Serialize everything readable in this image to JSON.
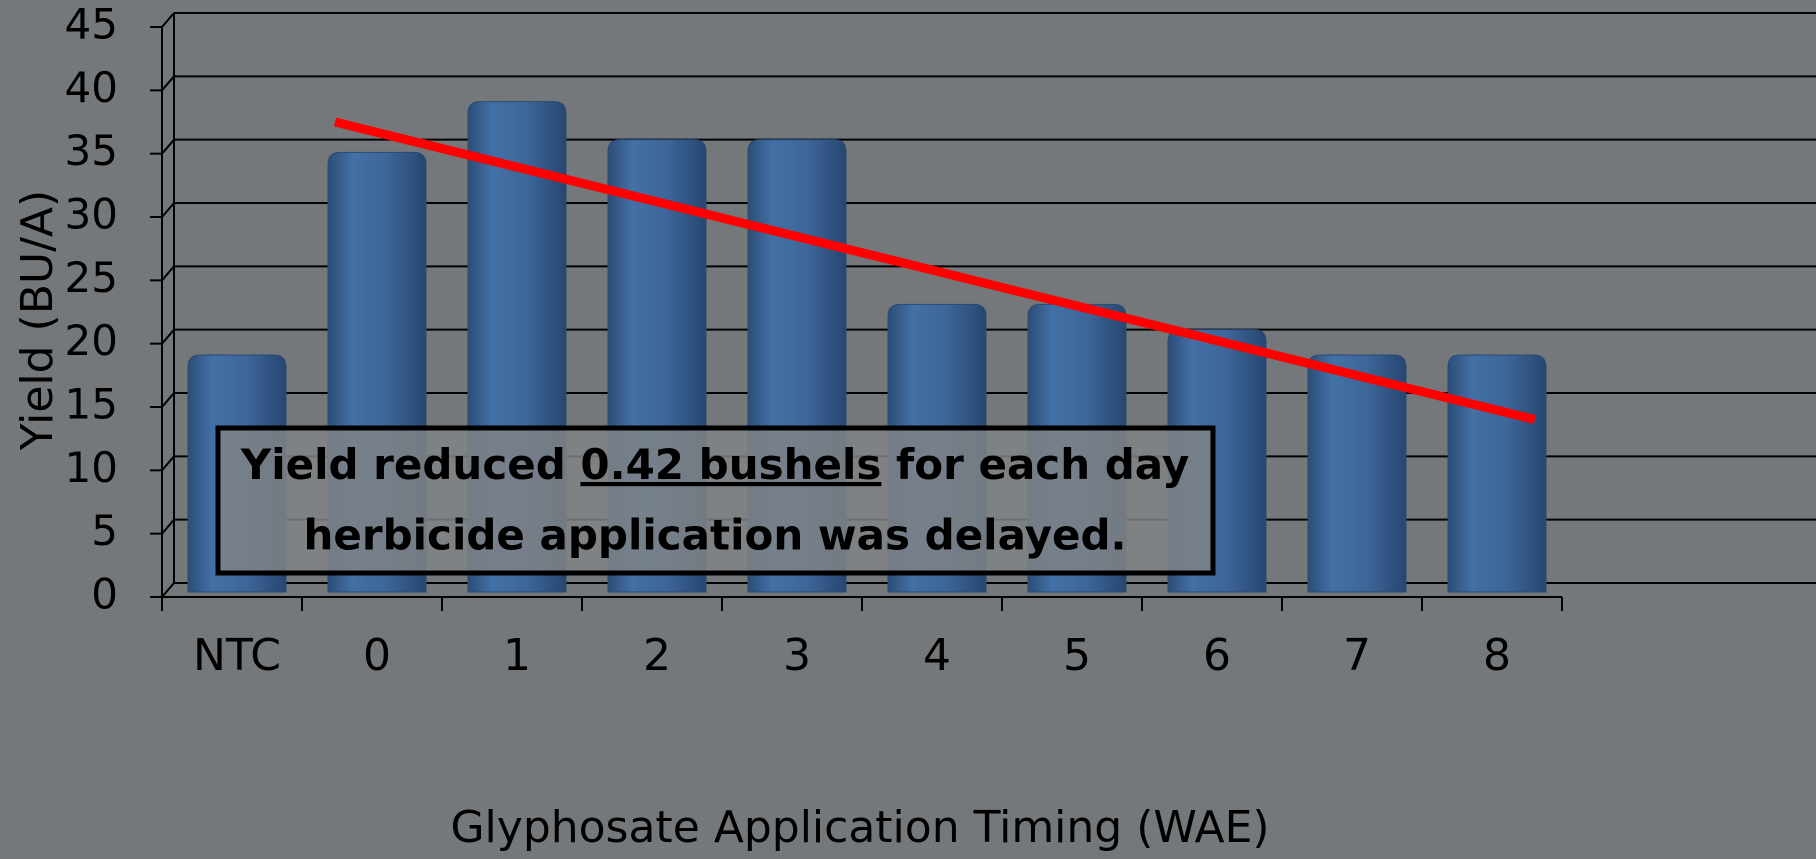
{
  "chart_data": {
    "type": "bar",
    "categories": [
      "NTC",
      "0",
      "1",
      "2",
      "3",
      "4",
      "5",
      "6",
      "7",
      "8"
    ],
    "values": [
      18,
      34,
      38,
      35,
      35,
      22,
      22,
      20,
      18,
      18
    ],
    "color": "#3d6699",
    "ylim": [
      0,
      45
    ],
    "yticks": [
      0,
      5,
      10,
      15,
      20,
      25,
      30,
      35,
      40,
      45
    ],
    "grid": true,
    "y_label": "Yield (BU/A)",
    "x_label": "Glyphosate Application Timing (WAE)",
    "trendline": {
      "x": [
        0.7,
        9.27
      ],
      "values": [
        36.4,
        12.9
      ],
      "color": "#ff0000"
    },
    "annotation": {
      "line1_start": "Yield reduced ",
      "line1_underlined": "0.42 bushels",
      "line1_end": " for each day",
      "line2": "herbicide application was delayed."
    }
  }
}
